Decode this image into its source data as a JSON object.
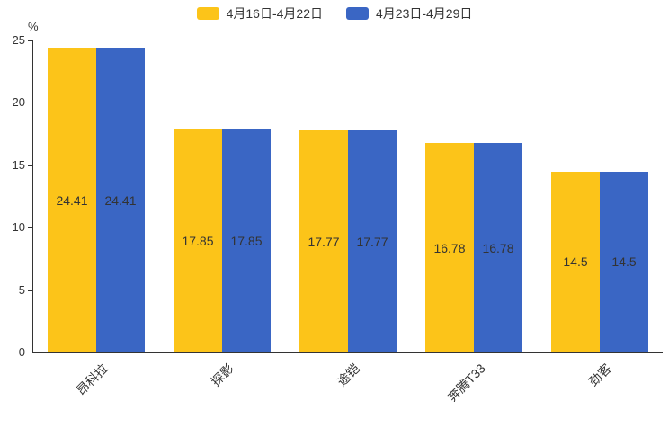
{
  "chart_data": {
    "type": "bar",
    "title": "",
    "categories": [
      "昂科拉",
      "探影",
      "途铠",
      "奔腾T33",
      "劲客"
    ],
    "series": [
      {
        "name": "4月16日-4月22日",
        "color": "#FCC419",
        "values": [
          24.41,
          17.85,
          17.77,
          16.78,
          14.5
        ]
      },
      {
        "name": "4月23日-4月29日",
        "color": "#3A66C4",
        "values": [
          24.41,
          17.85,
          17.77,
          16.78,
          14.5
        ]
      }
    ],
    "xlabel": "",
    "ylabel": "%",
    "ylim": [
      0,
      25
    ],
    "yticks": [
      0,
      5,
      10,
      15,
      20,
      25
    ],
    "legend_position": "top",
    "grid": false,
    "data_labels": true,
    "axis_color": "#333333",
    "background": "#ffffff"
  }
}
